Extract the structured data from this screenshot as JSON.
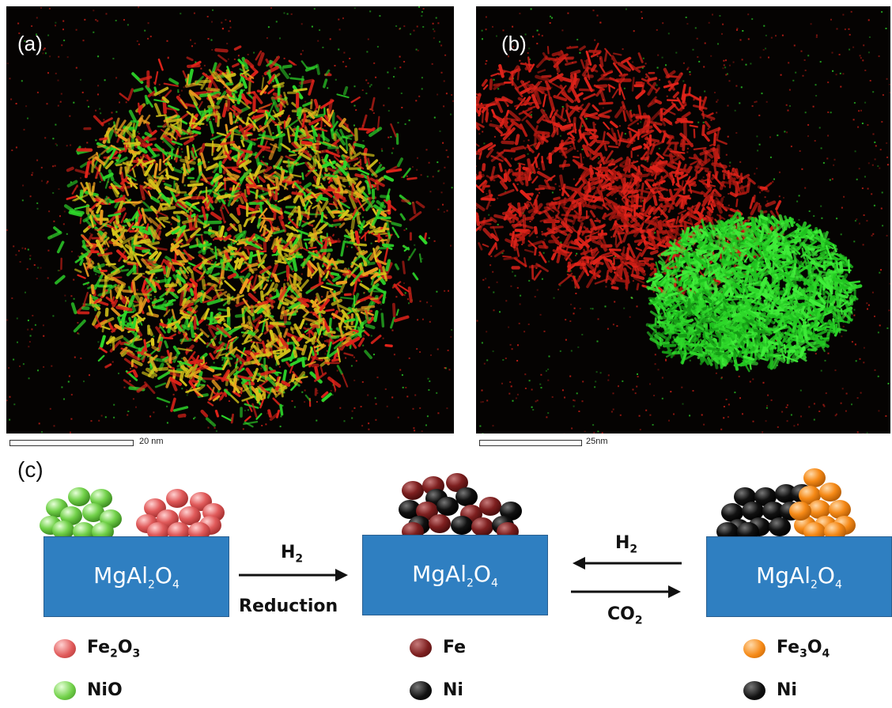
{
  "panels": {
    "a": {
      "label": "(a)",
      "scale": "20 nm"
    },
    "b": {
      "label": "(b)",
      "scale": "25nm"
    },
    "c": {
      "label": "(c)"
    }
  },
  "colors": {
    "red": "#e0231a",
    "green": "#2ed82a",
    "yellow": "#d6c51a",
    "substrate": "#2f7fc1",
    "fe2o3": "#e15b5b",
    "nio": "#72d14a",
    "fe": "#7d1f1f",
    "ni": "#111111",
    "fe3o4": "#f68a17"
  },
  "scheme": {
    "substrate_label": {
      "base": "MgAl",
      "s1": "2",
      "mid": "O",
      "s2": "4"
    },
    "arrow1": {
      "top_base": "H",
      "top_sub": "2",
      "bottom": "Reduction"
    },
    "arrow2": {
      "top_base": "H",
      "top_sub": "2",
      "bottom_base": "CO",
      "bottom_sub": "2"
    }
  },
  "legend": {
    "left": [
      {
        "base": "Fe",
        "s1": "2",
        "mid": "O",
        "s2": "3",
        "color": "#e15b5b"
      },
      {
        "base": "NiO",
        "s1": "",
        "mid": "",
        "s2": "",
        "color": "#72d14a"
      }
    ],
    "middle": [
      {
        "base": "Fe",
        "color": "#7d1f1f"
      },
      {
        "base": "Ni",
        "color": "#111111"
      }
    ],
    "right": [
      {
        "base": "Fe",
        "s1": "3",
        "mid": "O",
        "s2": "4",
        "color": "#f68a17"
      },
      {
        "base": "Ni",
        "color": "#111111"
      }
    ]
  }
}
